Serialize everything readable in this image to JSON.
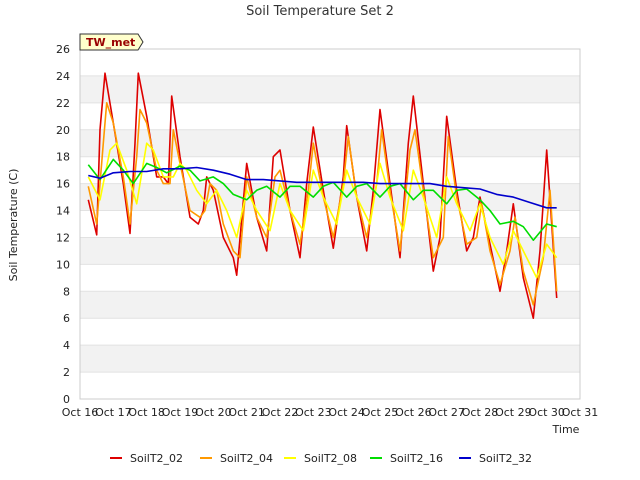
{
  "chart_data": {
    "type": "line",
    "title": "Soil Temperature Set 2",
    "xlabel": "Time",
    "ylabel": "Soil Temperature (C)",
    "ylim": [
      0,
      26
    ],
    "yticks": [
      0,
      2,
      4,
      6,
      8,
      10,
      12,
      14,
      16,
      18,
      20,
      22,
      24,
      26
    ],
    "xlim": [
      0,
      15
    ],
    "xtick_labels": [
      "Oct 16",
      "Oct 17",
      "Oct 18",
      "Oct 19",
      "Oct 20",
      "Oct 21",
      "Oct 22",
      "Oct 23",
      "Oct 24",
      "Oct 25",
      "Oct 26",
      "Oct 27",
      "Oct 28",
      "Oct 29",
      "Oct 30",
      "Oct 31"
    ],
    "x_units": "days since Oct 16",
    "grid": "horizontal bands",
    "annotation": "TW_met",
    "legend_position": "bottom",
    "series": [
      {
        "name": "SoilT2_02",
        "color": "#dd0000",
        "x": [
          0.25,
          0.5,
          0.6,
          0.75,
          1.0,
          1.3,
          1.5,
          1.65,
          1.75,
          2.0,
          2.3,
          2.5,
          2.65,
          2.75,
          3.0,
          3.3,
          3.55,
          3.7,
          3.8,
          4.0,
          4.3,
          4.6,
          4.7,
          5.0,
          5.3,
          5.6,
          5.8,
          6.0,
          6.3,
          6.6,
          6.8,
          7.0,
          7.3,
          7.6,
          7.9,
          8.0,
          8.3,
          8.6,
          8.8,
          9.0,
          9.3,
          9.6,
          9.85,
          10.0,
          10.3,
          10.6,
          10.8,
          11.0,
          11.3,
          11.6,
          11.8,
          12.0,
          12.3,
          12.6,
          12.8,
          13.0,
          13.3,
          13.6,
          13.8,
          14.0,
          14.3
        ],
        "values": [
          14.8,
          12.2,
          20.0,
          24.2,
          20.5,
          16.0,
          12.3,
          19.0,
          24.2,
          21.0,
          16.5,
          16.5,
          16.0,
          22.5,
          18.0,
          13.5,
          13.0,
          14.0,
          16.5,
          15.5,
          12.0,
          10.5,
          9.2,
          17.5,
          13.5,
          11.0,
          18.0,
          18.5,
          14.0,
          10.5,
          16.0,
          20.2,
          15.5,
          11.2,
          16.5,
          20.3,
          15.0,
          11.0,
          15.5,
          21.5,
          16.0,
          10.5,
          19.0,
          22.5,
          16.0,
          9.5,
          12.0,
          21.0,
          15.5,
          11.0,
          12.0,
          15.0,
          11.5,
          8.0,
          11.0,
          14.5,
          9.0,
          6.0,
          11.0,
          18.5,
          7.5
        ]
      },
      {
        "name": "SoilT2_04",
        "color": "#ff9900",
        "x": [
          0.25,
          0.5,
          0.7,
          0.8,
          1.0,
          1.3,
          1.5,
          1.7,
          1.8,
          2.0,
          2.3,
          2.5,
          2.7,
          2.8,
          3.0,
          3.3,
          3.6,
          3.75,
          3.9,
          4.1,
          4.3,
          4.6,
          4.8,
          5.0,
          5.3,
          5.6,
          5.85,
          6.0,
          6.3,
          6.6,
          6.85,
          7.0,
          7.3,
          7.6,
          7.9,
          8.05,
          8.3,
          8.6,
          8.9,
          9.05,
          9.3,
          9.6,
          9.9,
          10.05,
          10.3,
          10.6,
          10.9,
          11.05,
          11.3,
          11.6,
          11.9,
          12.05,
          12.3,
          12.6,
          12.9,
          13.05,
          13.3,
          13.6,
          13.9,
          14.1,
          14.3
        ],
        "values": [
          15.8,
          13.0,
          19.0,
          22.0,
          20.5,
          16.5,
          13.0,
          18.0,
          21.5,
          20.5,
          17.0,
          16.0,
          16.0,
          20.0,
          17.5,
          14.0,
          13.5,
          14.0,
          16.0,
          15.5,
          13.0,
          11.0,
          10.5,
          16.5,
          13.5,
          12.0,
          16.5,
          17.0,
          14.0,
          11.5,
          15.5,
          19.0,
          15.0,
          12.0,
          16.0,
          19.5,
          15.0,
          12.0,
          16.0,
          20.0,
          15.5,
          11.0,
          18.5,
          20.0,
          15.5,
          10.5,
          12.0,
          19.5,
          15.0,
          11.5,
          12.0,
          14.5,
          11.0,
          8.5,
          11.0,
          13.5,
          9.5,
          7.0,
          10.5,
          15.5,
          8.0
        ]
      },
      {
        "name": "SoilT2_08",
        "color": "#ffff00",
        "x": [
          0.25,
          0.6,
          0.9,
          1.1,
          1.4,
          1.7,
          2.0,
          2.2,
          2.5,
          2.8,
          3.0,
          3.2,
          3.5,
          3.8,
          4.1,
          4.4,
          4.7,
          5.0,
          5.3,
          5.7,
          6.0,
          6.3,
          6.7,
          7.0,
          7.3,
          7.7,
          8.0,
          8.3,
          8.7,
          9.0,
          9.3,
          9.7,
          10.0,
          10.3,
          10.7,
          11.0,
          11.3,
          11.7,
          12.0,
          12.3,
          12.7,
          13.0,
          13.3,
          13.7,
          14.0,
          14.3
        ],
        "values": [
          16.5,
          14.8,
          18.5,
          19.0,
          17.0,
          14.5,
          19.0,
          18.5,
          16.5,
          16.5,
          17.5,
          17.0,
          15.5,
          14.5,
          15.5,
          14.0,
          12.0,
          15.5,
          14.0,
          12.5,
          16.0,
          14.0,
          12.5,
          17.0,
          15.0,
          13.0,
          17.0,
          15.0,
          13.0,
          17.5,
          15.0,
          12.5,
          17.0,
          15.0,
          12.0,
          16.5,
          14.5,
          12.5,
          14.5,
          12.0,
          10.0,
          12.5,
          11.0,
          9.0,
          11.5,
          10.5
        ]
      },
      {
        "name": "SoilT2_16",
        "color": "#00dd00",
        "x": [
          0.25,
          0.6,
          1.0,
          1.3,
          1.6,
          2.0,
          2.3,
          2.6,
          3.0,
          3.3,
          3.6,
          4.0,
          4.3,
          4.6,
          5.0,
          5.3,
          5.6,
          6.0,
          6.3,
          6.6,
          7.0,
          7.3,
          7.6,
          8.0,
          8.3,
          8.6,
          9.0,
          9.3,
          9.6,
          10.0,
          10.3,
          10.6,
          11.0,
          11.3,
          11.6,
          12.0,
          12.3,
          12.6,
          13.0,
          13.3,
          13.6,
          14.0,
          14.3
        ],
        "values": [
          17.4,
          16.3,
          17.8,
          17.0,
          16.0,
          17.5,
          17.2,
          16.8,
          17.3,
          17.0,
          16.2,
          16.5,
          16.0,
          15.2,
          14.8,
          15.5,
          15.8,
          15.0,
          15.8,
          15.8,
          15.0,
          15.8,
          16.1,
          15.0,
          15.8,
          16.0,
          15.0,
          15.8,
          16.0,
          14.8,
          15.5,
          15.5,
          14.5,
          15.5,
          15.6,
          14.8,
          14.0,
          13.0,
          13.2,
          12.8,
          11.8,
          13.0,
          12.8
        ]
      },
      {
        "name": "SoilT2_32",
        "color": "#0000cc",
        "x": [
          0.25,
          0.6,
          1.0,
          1.5,
          2.0,
          2.5,
          3.0,
          3.5,
          4.0,
          4.5,
          5.0,
          5.5,
          6.0,
          6.5,
          7.0,
          7.5,
          8.0,
          8.5,
          9.0,
          9.5,
          10.0,
          10.5,
          11.0,
          11.5,
          12.0,
          12.5,
          13.0,
          13.5,
          14.0,
          14.3
        ],
        "values": [
          16.6,
          16.4,
          16.8,
          16.9,
          16.9,
          17.1,
          17.1,
          17.2,
          17.0,
          16.7,
          16.3,
          16.3,
          16.2,
          16.1,
          16.1,
          16.1,
          16.1,
          16.1,
          16.0,
          16.0,
          16.0,
          16.0,
          15.8,
          15.7,
          15.6,
          15.2,
          15.0,
          14.6,
          14.2,
          14.2
        ]
      }
    ]
  }
}
